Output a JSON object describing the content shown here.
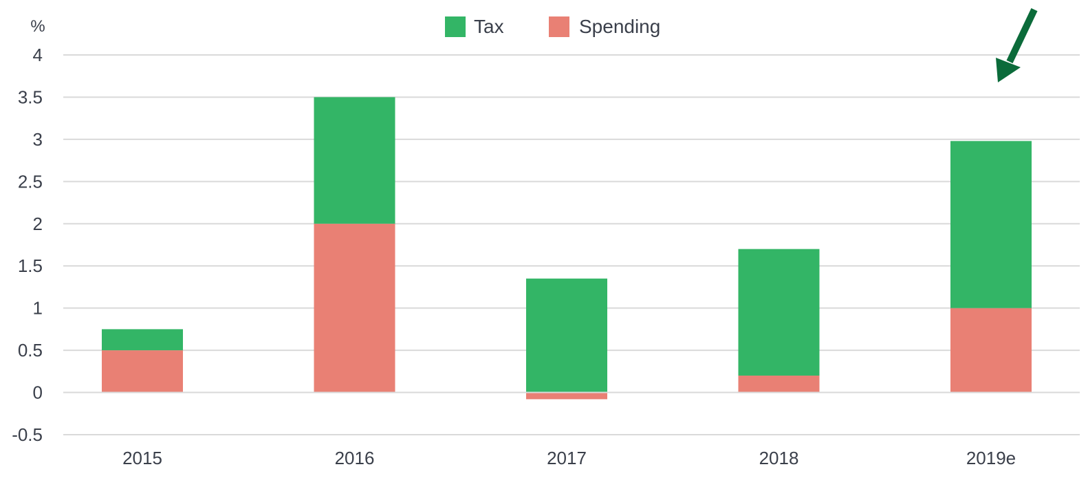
{
  "chart_data": {
    "type": "bar",
    "stacked": true,
    "title": "",
    "xlabel": "",
    "ylabel": "%",
    "categories": [
      "2015",
      "2016",
      "2017",
      "2018",
      "2019e"
    ],
    "series": [
      {
        "name": "Spending",
        "values": [
          0.5,
          2.0,
          -0.08,
          0.2,
          1.0
        ],
        "color": "#e98074"
      },
      {
        "name": "Tax",
        "values": [
          0.25,
          1.5,
          1.35,
          1.5,
          1.98
        ],
        "color": "#33b566"
      }
    ],
    "legend_order": [
      "Tax",
      "Spending"
    ],
    "ylim": [
      -0.5,
      4
    ],
    "yticks": [
      4,
      3.5,
      3,
      2.5,
      2,
      1.5,
      1,
      0.5,
      0,
      -0.5
    ],
    "ytick_labels": [
      "4",
      "3.5",
      "3",
      "2.5",
      "2",
      "1.5",
      "1",
      "0.5",
      "0",
      "-0.5"
    ],
    "grid": true,
    "legend_position": "top-center",
    "annotation": {
      "type": "arrow",
      "target_category": "2019e",
      "color": "#0b6b3a"
    }
  }
}
